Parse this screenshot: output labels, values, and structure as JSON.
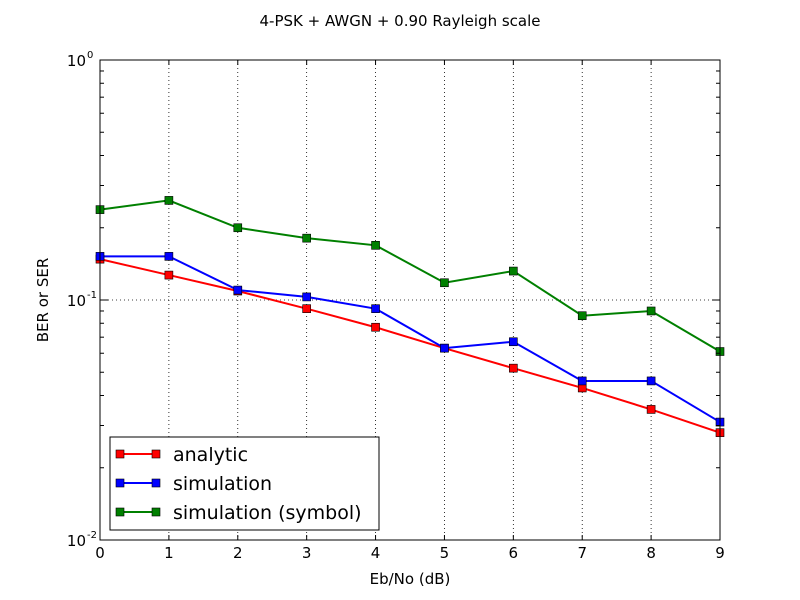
{
  "chart_data": {
    "type": "line",
    "title": "4-PSK + AWGN + 0.90 Rayleigh scale",
    "xlabel": "Eb/No (dB)",
    "ylabel": "BER or SER",
    "x": [
      0,
      1,
      2,
      3,
      4,
      5,
      6,
      7,
      8,
      9
    ],
    "xlim": [
      0,
      9
    ],
    "ylim": [
      0.01,
      1
    ],
    "yscale": "log",
    "x_ticks": [
      "0",
      "1",
      "2",
      "3",
      "4",
      "5",
      "6",
      "7",
      "8",
      "9"
    ],
    "y_ticks": [
      {
        "value": 1,
        "base": "10",
        "exp": "0"
      },
      {
        "value": 0.1,
        "base": "10",
        "exp": "-1"
      },
      {
        "value": 0.01,
        "base": "10",
        "exp": "-2"
      }
    ],
    "grid": true,
    "legend_position": "bottom-left",
    "series": [
      {
        "name": "analytic",
        "color": "#ff0000",
        "values": [
          0.148,
          0.127,
          0.109,
          0.092,
          0.077,
          0.063,
          0.052,
          0.043,
          0.035,
          0.028
        ]
      },
      {
        "name": "simulation",
        "color": "#0000ff",
        "values": [
          0.152,
          0.152,
          0.11,
          0.103,
          0.092,
          0.063,
          0.067,
          0.046,
          0.046,
          0.031
        ]
      },
      {
        "name": "simulation (symbol)",
        "color": "#008000",
        "values": [
          0.238,
          0.26,
          0.2,
          0.181,
          0.169,
          0.118,
          0.132,
          0.086,
          0.09,
          0.061
        ]
      }
    ]
  }
}
